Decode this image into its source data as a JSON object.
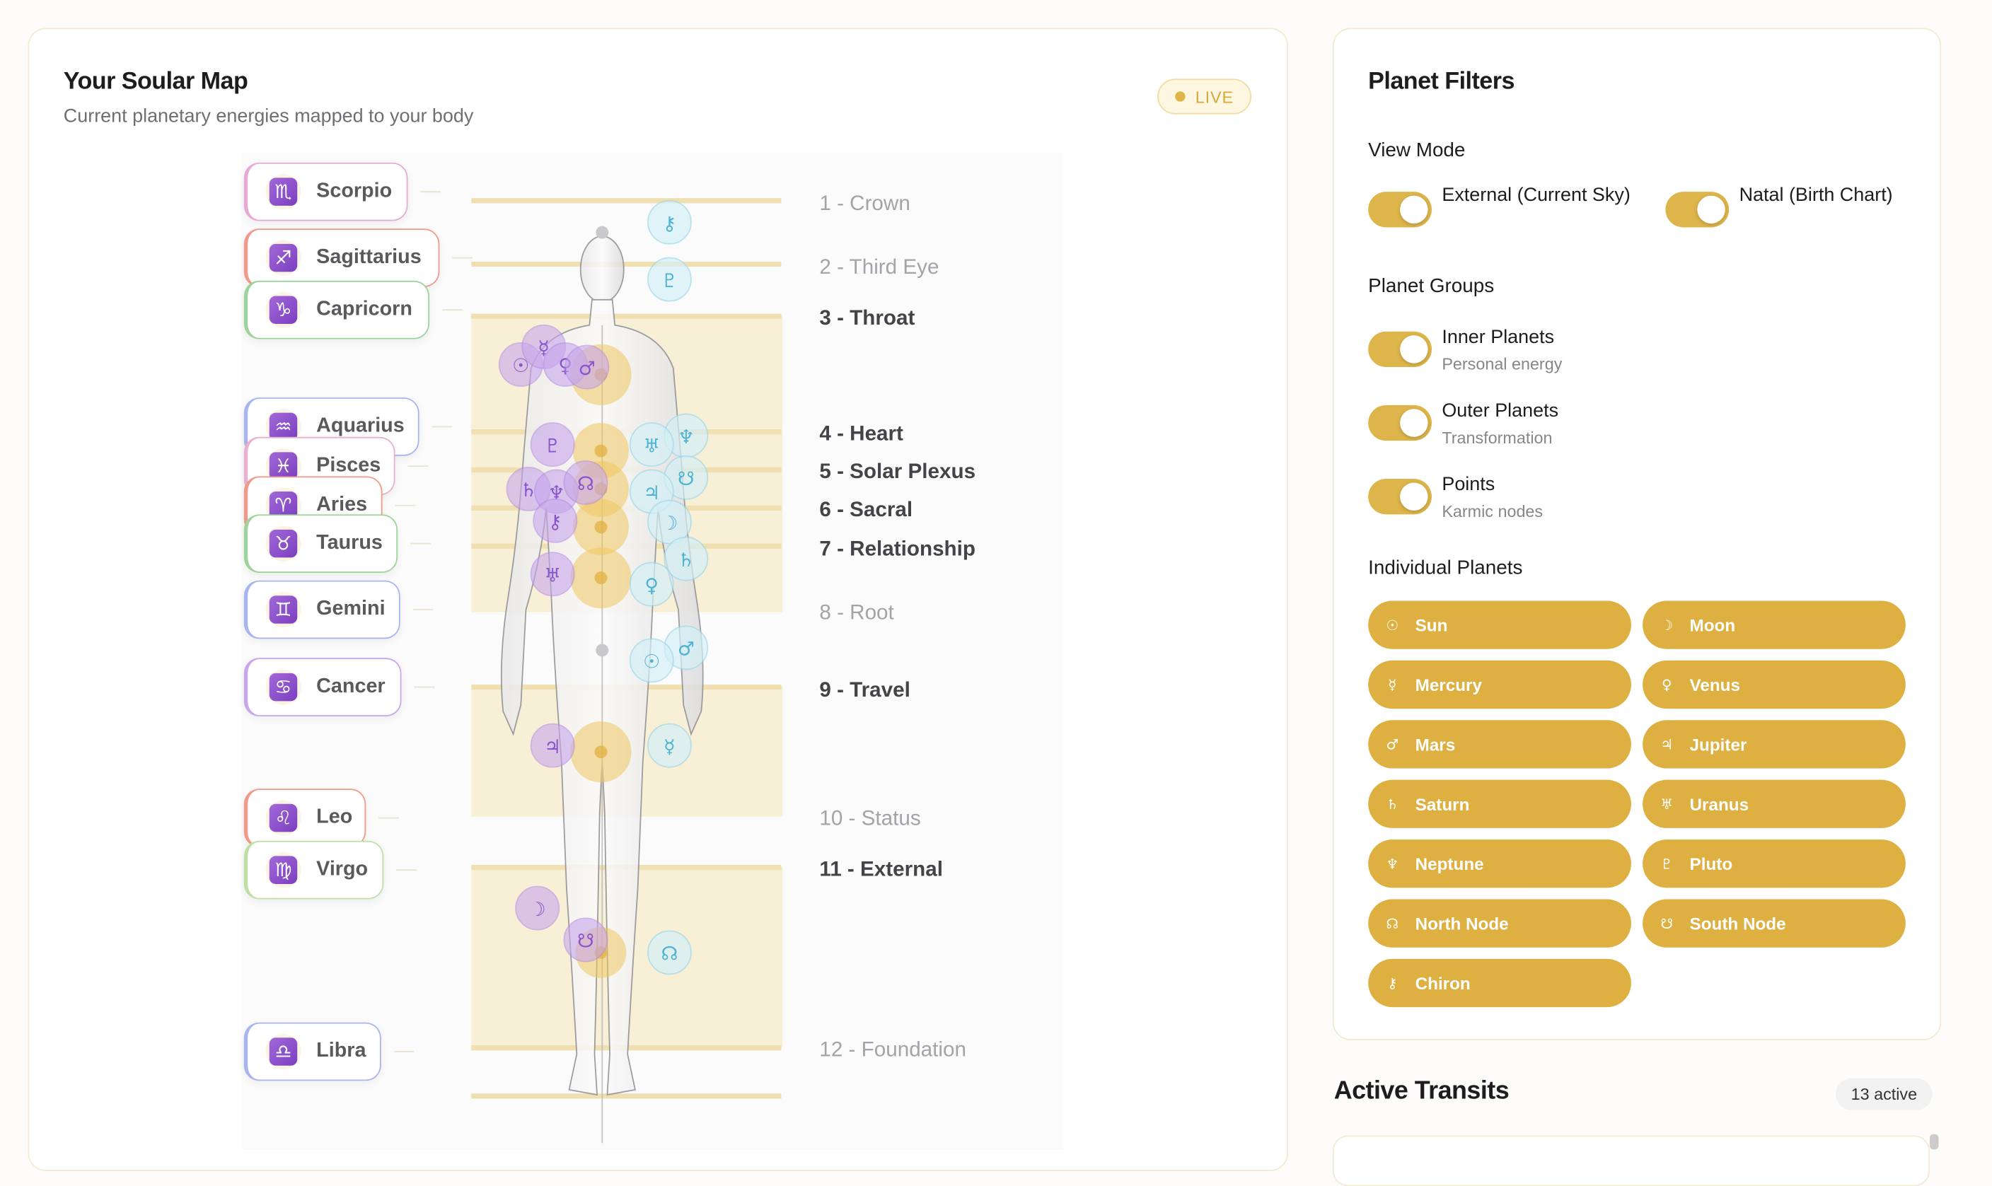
{
  "soular_map": {
    "title": "Your Soular Map",
    "subtitle": "Current planetary energies mapped to your body",
    "badge": "LIVE",
    "signs": [
      {
        "glyph": "♏",
        "name": "Scorpio"
      },
      {
        "glyph": "♐",
        "name": "Sagittarius"
      },
      {
        "glyph": "♑",
        "name": "Capricorn"
      },
      {
        "glyph": "♒",
        "name": "Aquarius"
      },
      {
        "glyph": "♓",
        "name": "Pisces"
      },
      {
        "glyph": "♈",
        "name": "Aries"
      },
      {
        "glyph": "♉",
        "name": "Taurus"
      },
      {
        "glyph": "♊",
        "name": "Gemini"
      },
      {
        "glyph": "♋",
        "name": "Cancer"
      },
      {
        "glyph": "♌",
        "name": "Leo"
      },
      {
        "glyph": "♍",
        "name": "Virgo"
      },
      {
        "glyph": "♎",
        "name": "Libra"
      }
    ],
    "houses": [
      {
        "label": "1 - Crown",
        "active": false
      },
      {
        "label": "2 - Third Eye",
        "active": false
      },
      {
        "label": "3 - Throat",
        "active": true
      },
      {
        "label": "4 - Heart",
        "active": true
      },
      {
        "label": "5 - Solar Plexus",
        "active": true
      },
      {
        "label": "6 - Sacral",
        "active": true
      },
      {
        "label": "7 - Relationship",
        "active": true
      },
      {
        "label": "8 - Root",
        "active": false
      },
      {
        "label": "9 - Travel",
        "active": true
      },
      {
        "label": "10 - Status",
        "active": false
      },
      {
        "label": "11 - External",
        "active": true
      },
      {
        "label": "12 - Foundation",
        "active": false
      }
    ],
    "markers": [
      {
        "glyph": "☉",
        "source": "natal"
      },
      {
        "glyph": "☿",
        "source": "natal"
      },
      {
        "glyph": "♀",
        "source": "natal"
      },
      {
        "glyph": "♂",
        "source": "natal"
      },
      {
        "glyph": "♇",
        "source": "natal"
      },
      {
        "glyph": "♄",
        "source": "natal"
      },
      {
        "glyph": "♆",
        "source": "natal"
      },
      {
        "glyph": "☊",
        "source": "natal"
      },
      {
        "glyph": "⚷",
        "source": "natal"
      },
      {
        "glyph": "♅",
        "source": "natal"
      },
      {
        "glyph": "♃",
        "source": "natal"
      },
      {
        "glyph": "☽",
        "source": "natal"
      },
      {
        "glyph": "☋",
        "source": "natal"
      },
      {
        "glyph": "⚷",
        "source": "external"
      },
      {
        "glyph": "♇",
        "source": "external"
      },
      {
        "glyph": "♆",
        "source": "external"
      },
      {
        "glyph": "♅",
        "source": "external"
      },
      {
        "glyph": "☋",
        "source": "external"
      },
      {
        "glyph": "♃",
        "source": "external"
      },
      {
        "glyph": "☽",
        "source": "external"
      },
      {
        "glyph": "♄",
        "source": "external"
      },
      {
        "glyph": "♀",
        "source": "external"
      },
      {
        "glyph": "♂",
        "source": "external"
      },
      {
        "glyph": "☉",
        "source": "external"
      },
      {
        "glyph": "☿",
        "source": "external"
      },
      {
        "glyph": "☊",
        "source": "external"
      }
    ]
  },
  "planet_filters": {
    "title": "Planet Filters",
    "view_mode": {
      "label": "View Mode",
      "options": [
        {
          "label": "External (Current Sky)",
          "on": true
        },
        {
          "label": "Natal (Birth Chart)",
          "on": true
        }
      ]
    },
    "planet_groups": {
      "label": "Planet Groups",
      "groups": [
        {
          "name": "Inner Planets",
          "description": "Personal energy",
          "on": true
        },
        {
          "name": "Outer Planets",
          "description": "Transformation",
          "on": true
        },
        {
          "name": "Points",
          "description": "Karmic nodes",
          "on": true
        }
      ]
    },
    "individual_planets": {
      "label": "Individual Planets",
      "planets": [
        {
          "glyph": "☉",
          "name": "Sun"
        },
        {
          "glyph": "☽",
          "name": "Moon"
        },
        {
          "glyph": "☿",
          "name": "Mercury"
        },
        {
          "glyph": "♀",
          "name": "Venus"
        },
        {
          "glyph": "♂",
          "name": "Mars"
        },
        {
          "glyph": "♃",
          "name": "Jupiter"
        },
        {
          "glyph": "♄",
          "name": "Saturn"
        },
        {
          "glyph": "♅",
          "name": "Uranus"
        },
        {
          "glyph": "♆",
          "name": "Neptune"
        },
        {
          "glyph": "♇",
          "name": "Pluto"
        },
        {
          "glyph": "☊",
          "name": "North Node"
        },
        {
          "glyph": "☋",
          "name": "South Node"
        },
        {
          "glyph": "⚷",
          "name": "Chiron"
        }
      ]
    }
  },
  "active_transits": {
    "title": "Active Transits",
    "count_label": "13 active"
  }
}
